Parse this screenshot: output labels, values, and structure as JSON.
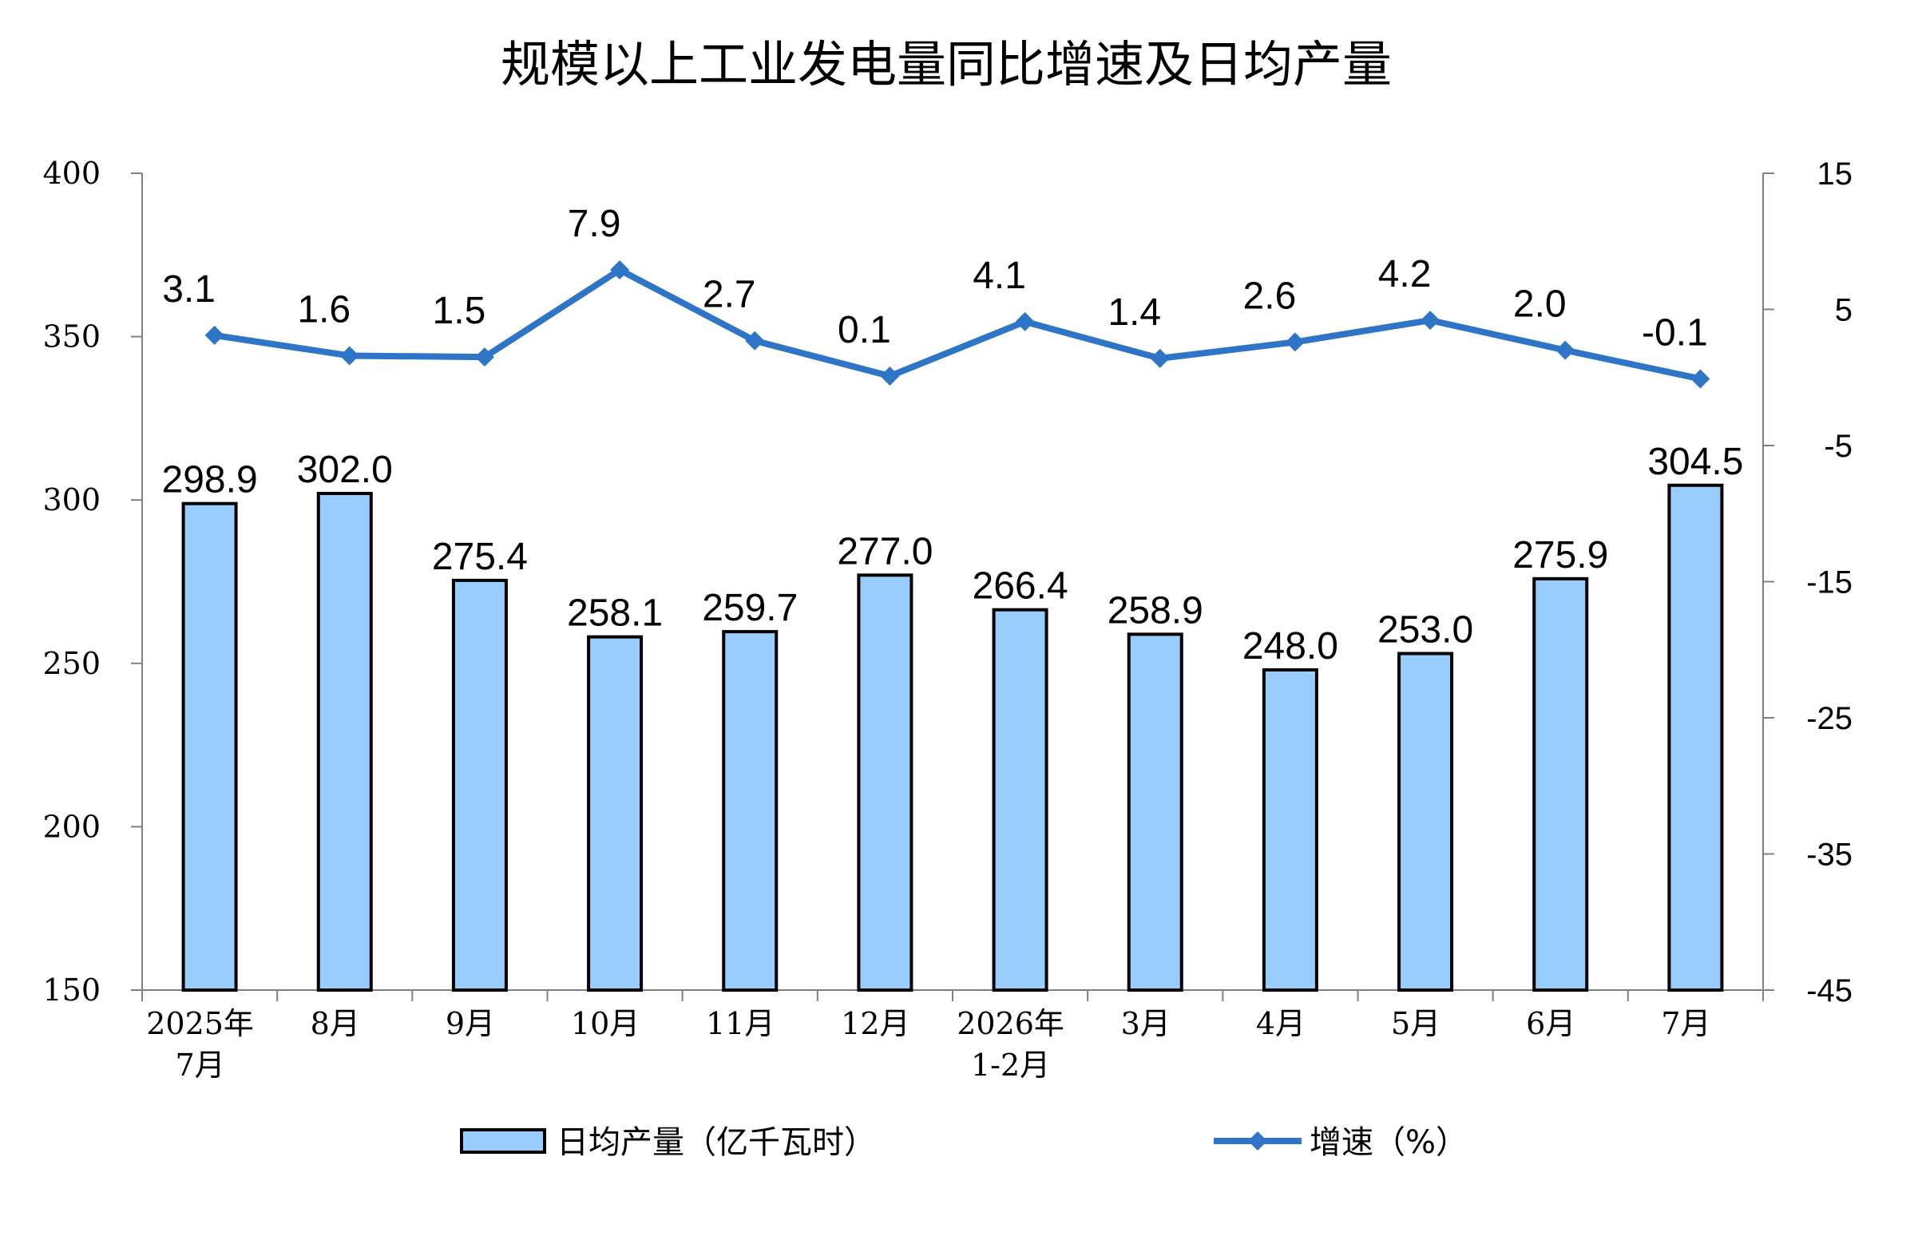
{
  "chart_data": {
    "type": "bar+line",
    "title": "规模以上工业发电量同比增速及日均产量",
    "categories": [
      [
        "2025年",
        "7月"
      ],
      [
        "8月"
      ],
      [
        "9月"
      ],
      [
        "10月"
      ],
      [
        "11月"
      ],
      [
        "12月"
      ],
      [
        "2026年",
        "1-2月"
      ],
      [
        "3月"
      ],
      [
        "4月"
      ],
      [
        "5月"
      ],
      [
        "6月"
      ],
      [
        "7月"
      ]
    ],
    "series": [
      {
        "name": "日均产量（亿千瓦时）",
        "type": "bar",
        "axis": "left",
        "color": "#99CCFF",
        "values": [
          298.9,
          302.0,
          275.4,
          258.1,
          259.7,
          277.0,
          266.4,
          258.9,
          248.0,
          253.0,
          275.9,
          304.5
        ],
        "labels": [
          "298.9",
          "302.0",
          "275.4",
          "258.1",
          "259.7",
          "277.0",
          "266.4",
          "258.9",
          "248.0",
          "253.0",
          "275.9",
          "304.5"
        ]
      },
      {
        "name": "增速（%）",
        "type": "line",
        "axis": "right",
        "color": "#2E75C8",
        "values": [
          3.1,
          1.6,
          1.5,
          7.9,
          2.7,
          0.1,
          4.1,
          1.4,
          2.6,
          4.2,
          2.0,
          -0.1
        ],
        "labels": [
          "3.1",
          "1.6",
          "1.5",
          "7.9",
          "2.7",
          "0.1",
          "4.1",
          "1.4",
          "2.6",
          "4.2",
          "2.0",
          "-0.1"
        ]
      }
    ],
    "y_left": {
      "min": 150,
      "max": 400,
      "ticks": [
        400,
        350,
        300,
        250,
        200,
        150
      ]
    },
    "y_right": {
      "min": -45,
      "max": 15,
      "ticks": [
        15,
        5,
        -5,
        -15,
        -25,
        -35,
        -45
      ]
    },
    "legend_position": "bottom",
    "grid": false
  }
}
